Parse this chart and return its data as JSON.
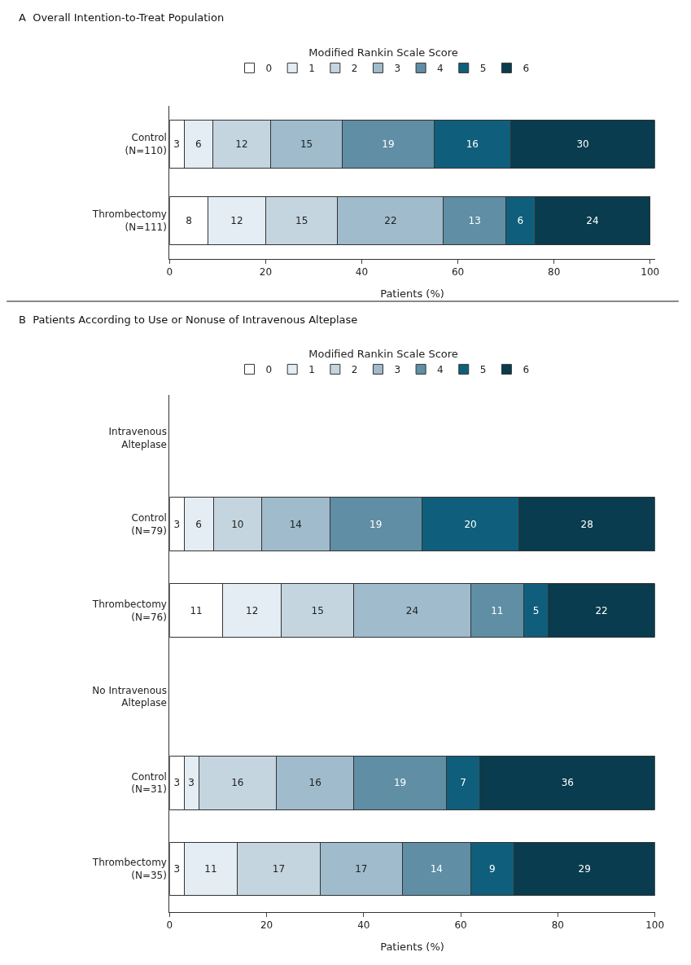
{
  "chart_data": [
    {
      "type": "bar",
      "orientation": "horizontal",
      "stacked": true,
      "data_labels": true,
      "title": "A  Overall Intention-to-Treat Population",
      "legend_title": "Modified Rankin Scale Score",
      "legend": "top",
      "xlabel": "Patients (%)",
      "xlim": [
        0,
        101
      ],
      "xticks": [
        0,
        20,
        40,
        60,
        80,
        100
      ],
      "categories": [
        "Control\n(N=110)",
        "Thrombectomy\n(N=111)"
      ],
      "series": [
        {
          "name": "0",
          "color": "#ffffff",
          "values": [
            3,
            8
          ]
        },
        {
          "name": "1",
          "color": "#e3edf3",
          "values": [
            6,
            12
          ]
        },
        {
          "name": "2",
          "color": "#c5d5df",
          "values": [
            12,
            15
          ]
        },
        {
          "name": "3",
          "color": "#9fbbcc",
          "values": [
            15,
            22
          ]
        },
        {
          "name": "4",
          "color": "#5f8ea5",
          "values": [
            19,
            13
          ]
        },
        {
          "name": "5",
          "color": "#0f5f7c",
          "values": [
            16,
            6
          ]
        },
        {
          "name": "6",
          "color": "#083c4e",
          "values": [
            30,
            24
          ]
        }
      ]
    },
    {
      "type": "bar",
      "orientation": "horizontal",
      "stacked": true,
      "data_labels": true,
      "title": "B  Patients According to Use or Nonuse of Intravenous Alteplase",
      "legend_title": "Modified Rankin Scale Score",
      "legend": "top",
      "xlabel": "Patients (%)",
      "xlim": [
        0,
        100
      ],
      "xticks": [
        0,
        20,
        40,
        60,
        80,
        100
      ],
      "categories": [
        "Intravenous\nAlteplase",
        "Control\n(N=79)",
        "Thrombectomy\n(N=76)",
        "No Intravenous\nAlteplase",
        "Control\n(N=31)",
        "Thrombectomy\n(N=35)"
      ],
      "series": [
        {
          "name": "0",
          "color": "#ffffff",
          "values": [
            null,
            3,
            11,
            null,
            3,
            3
          ]
        },
        {
          "name": "1",
          "color": "#e3edf3",
          "values": [
            null,
            6,
            12,
            null,
            3,
            11
          ]
        },
        {
          "name": "2",
          "color": "#c5d5df",
          "values": [
            null,
            10,
            15,
            null,
            16,
            17
          ]
        },
        {
          "name": "3",
          "color": "#9fbbcc",
          "values": [
            null,
            14,
            24,
            null,
            16,
            17
          ]
        },
        {
          "name": "4",
          "color": "#5f8ea5",
          "values": [
            null,
            19,
            11,
            null,
            19,
            14
          ]
        },
        {
          "name": "5",
          "color": "#0f5f7c",
          "values": [
            null,
            20,
            5,
            null,
            7,
            9
          ]
        },
        {
          "name": "6",
          "color": "#083c4e",
          "values": [
            null,
            28,
            22,
            null,
            36,
            29
          ]
        }
      ]
    }
  ]
}
